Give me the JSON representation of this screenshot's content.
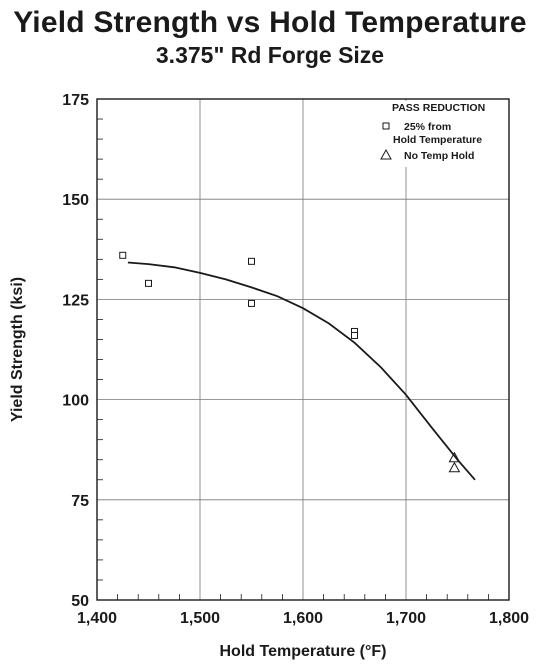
{
  "chart_data": {
    "type": "scatter",
    "title": "Yield Strength vs Hold Temperature",
    "subtitle": "3.375\" Rd Forge Size",
    "xlabel": "Hold Temperature (°F)",
    "ylabel": "Yield Strength (ksi)",
    "xlim": [
      1400,
      1800
    ],
    "ylim": [
      50,
      175
    ],
    "x_ticks": [
      1400,
      1500,
      1600,
      1700,
      1800
    ],
    "x_tick_labels": [
      "1,400",
      "1,500",
      "1,600",
      "1,700",
      "1,800"
    ],
    "y_ticks": [
      50,
      75,
      100,
      125,
      150,
      175
    ],
    "y_tick_labels": [
      "50",
      "75",
      "100",
      "125",
      "150",
      "175"
    ],
    "grid": true,
    "legend": {
      "title": "PASS REDUCTION",
      "position": "top-right",
      "entries": [
        "25% from Hold Temperature",
        "No Temp Hold"
      ],
      "entry_lines": [
        [
          "25% from",
          "Hold Temperature"
        ],
        [
          "No Temp Hold"
        ]
      ]
    },
    "series": [
      {
        "name": "25% from Hold Temperature",
        "marker": "square",
        "x": [
          1425,
          1450,
          1550,
          1550,
          1650,
          1650
        ],
        "y": [
          136,
          129,
          134.5,
          124,
          117,
          116
        ]
      },
      {
        "name": "No Temp Hold",
        "marker": "triangle",
        "x": [
          1747,
          1747
        ],
        "y": [
          85.5,
          83
        ]
      }
    ],
    "trend_line": {
      "x": [
        1430,
        1450,
        1475,
        1500,
        1525,
        1550,
        1575,
        1600,
        1625,
        1650,
        1675,
        1700,
        1725,
        1750,
        1767
      ],
      "y": [
        134.2,
        133.8,
        133.0,
        131.6,
        130.0,
        128.0,
        125.8,
        122.8,
        119.0,
        114.2,
        108.2,
        101.2,
        93.0,
        85.0,
        80.0
      ]
    }
  }
}
